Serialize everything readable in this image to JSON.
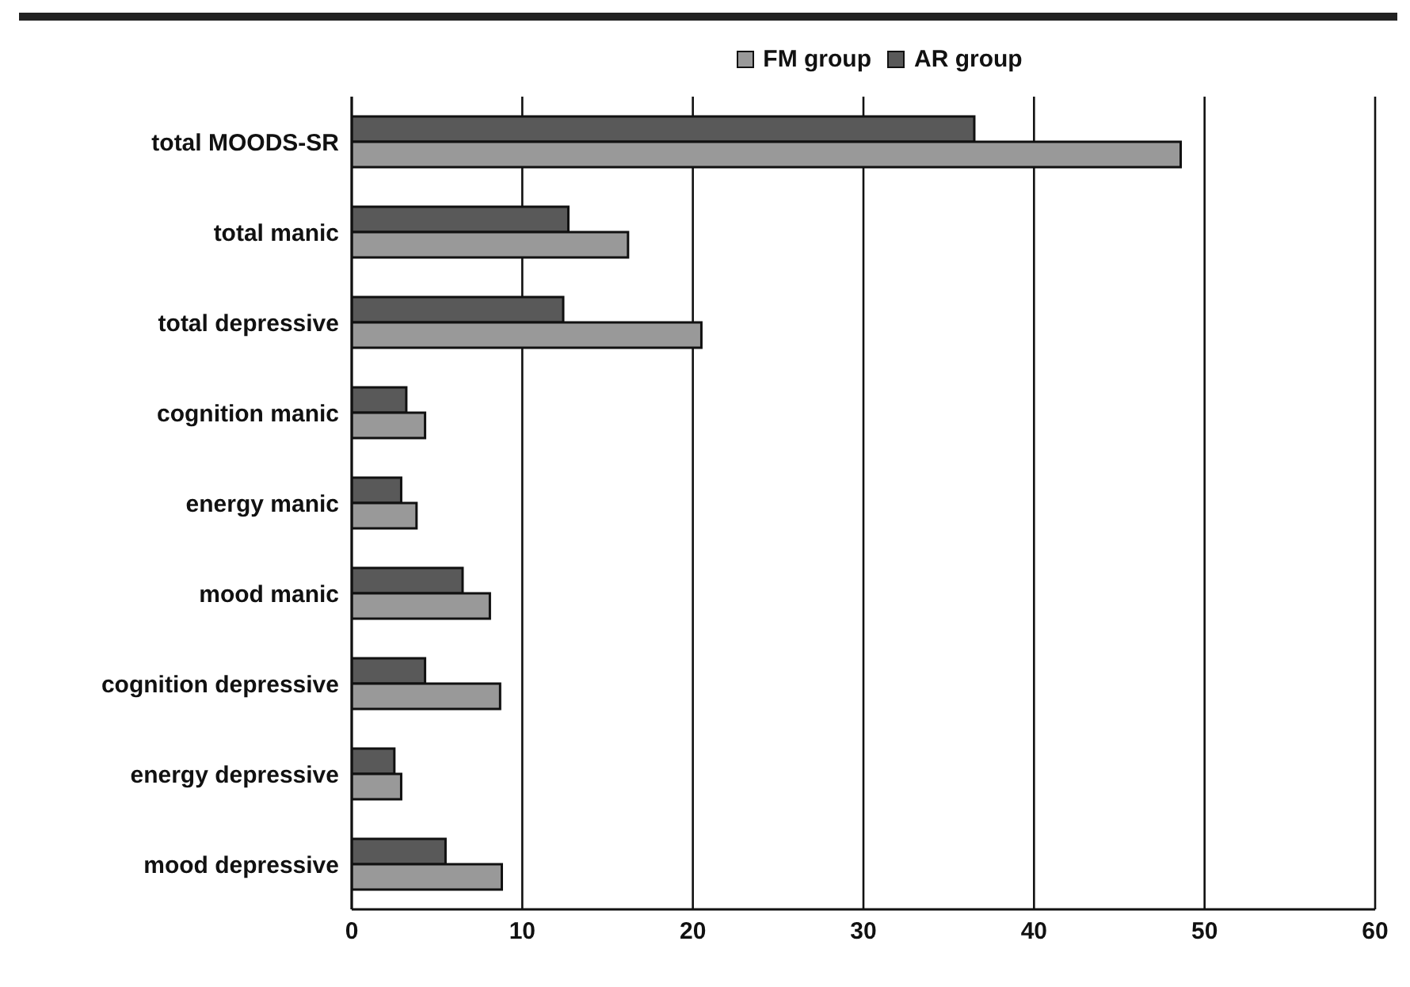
{
  "chart_data": {
    "type": "bar",
    "orientation": "horizontal",
    "categories": [
      "total MOODS-SR",
      "total manic",
      "total depressive",
      "cognition manic",
      "energy manic",
      "mood manic",
      "cognition depressive",
      "energy depressive",
      "mood depressive"
    ],
    "series": [
      {
        "name": "FM group",
        "color": "#999999",
        "values": [
          48.6,
          16.2,
          20.5,
          4.3,
          3.8,
          8.1,
          8.7,
          2.9,
          8.8
        ]
      },
      {
        "name": "AR group",
        "color": "#595959",
        "values": [
          36.5,
          12.7,
          12.4,
          3.2,
          2.9,
          6.5,
          4.3,
          2.5,
          5.5
        ]
      }
    ],
    "xlim": [
      0,
      60
    ],
    "xticks": [
      0,
      10,
      20,
      30,
      40,
      50,
      60
    ],
    "grid": "x",
    "legend": "top"
  }
}
